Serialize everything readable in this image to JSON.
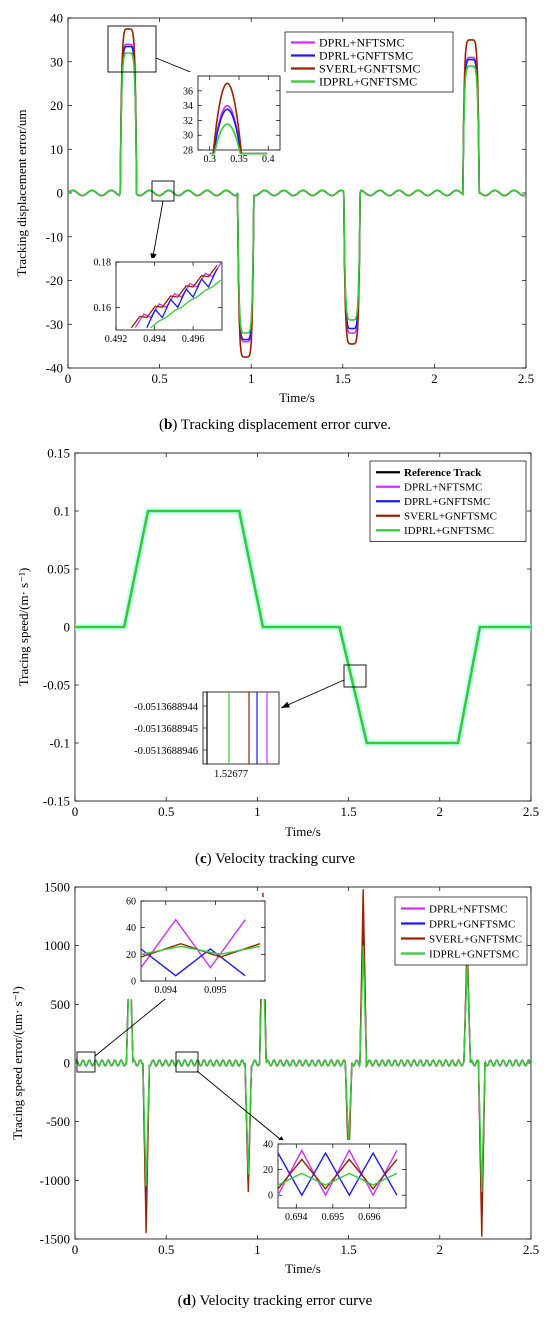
{
  "colors": {
    "DPRL+NFTSMC": "#cc33ff",
    "DPRL+GNFTSMC": "#1a1aff",
    "SVERL+GNFTSMC": "#992200",
    "IDPRL+GNFTSMC": "#33cc33",
    "Reference Track": "#000000"
  },
  "captions": [
    {
      "letter": "b",
      "open": "(",
      "close": ")",
      "text": " Tracking displacement error curve."
    },
    {
      "letter": "c",
      "open": "(",
      "close": ")",
      "text": " Velocity tracking curve"
    },
    {
      "letter": "d",
      "open": "(",
      "close": ")",
      "text": " Velocity tracking error curve"
    }
  ],
  "chart_data": [
    {
      "type": "line",
      "panel": "b",
      "xlabel": "Time/s",
      "ylabel": "Tracking displacement error/um",
      "xlim": [
        0,
        2.5
      ],
      "ylim": [
        -40,
        40
      ],
      "xticks": [
        "0",
        "0.5",
        "1",
        "1.5",
        "2",
        "2.5"
      ],
      "yticks": [
        "-40",
        "-30",
        "-20",
        "-10",
        "0",
        "10",
        "20",
        "30",
        "40"
      ],
      "legend_position": "top-right",
      "series": [
        {
          "name": "DPRL+NFTSMC",
          "peaks": [
            34,
            -34,
            -32,
            31
          ]
        },
        {
          "name": "DPRL+GNFTSMC",
          "peaks": [
            33.5,
            -33.5,
            -31,
            30.5
          ]
        },
        {
          "name": "SVERL+GNFTSMC",
          "peaks": [
            37.5,
            -37.5,
            -34.5,
            35
          ]
        },
        {
          "name": "IDPRL+GNFTSMC",
          "peaks": [
            32,
            -32,
            -29,
            29
          ]
        }
      ],
      "peak_times": [
        0.33,
        0.97,
        1.55,
        2.2
      ],
      "insets": [
        {
          "xlim": [
            0.28,
            0.42
          ],
          "ylim": [
            28,
            38
          ],
          "xticks": [
            "0.3",
            "0.35",
            "0.4"
          ],
          "yticks": [
            "28",
            "30",
            "32",
            "34",
            "36"
          ],
          "series_peaks": {
            "DPRL+NFTSMC": 34,
            "DPRL+GNFTSMC": 33.5,
            "SVERL+GNFTSMC": 37,
            "IDPRL+GNFTSMC": 31.5
          }
        },
        {
          "xlim": [
            0.492,
            0.4975
          ],
          "ylim": [
            0.15,
            0.18
          ],
          "xticks": [
            "0.492",
            "0.494",
            "0.496"
          ],
          "yticks": [
            "0.16",
            "0.18"
          ]
        }
      ]
    },
    {
      "type": "line",
      "panel": "c",
      "xlabel": "Time/s",
      "ylabel": "Tracing speed/(m· s⁻¹)",
      "xlim": [
        0,
        2.5
      ],
      "ylim": [
        -0.15,
        0.15
      ],
      "xticks": [
        "0",
        "0.5",
        "1",
        "1.5",
        "2",
        "2.5"
      ],
      "yticks": [
        "-0.15",
        "-0.1",
        "-0.05",
        "0",
        "0.05",
        "0.1",
        "0.15"
      ],
      "legend_position": "top-right",
      "series_names": [
        "Reference Track",
        "DPRL+NFTSMC",
        "DPRL+GNFTSMC",
        "SVERL+GNFTSMC",
        "IDPRL+GNFTSMC"
      ],
      "x": [
        0,
        0.27,
        0.4,
        0.9,
        1.03,
        1.45,
        1.6,
        2.1,
        2.22,
        2.5
      ],
      "y": [
        0,
        0,
        0.1,
        0.1,
        0,
        0,
        -0.1,
        -0.1,
        0,
        0
      ],
      "inset": {
        "yticks": [
          "-0.0513688944",
          "-0.0513688945",
          "-0.0513688946"
        ],
        "xticks": [
          "1.52677"
        ]
      }
    },
    {
      "type": "line",
      "panel": "d",
      "xlabel": "Time/s",
      "ylabel": "Tracing speed error/(um· s⁻¹)",
      "xlim": [
        0,
        2.5
      ],
      "ylim": [
        -1500,
        1500
      ],
      "xticks": [
        "0",
        "0.5",
        "1",
        "1.5",
        "2",
        "2.5"
      ],
      "yticks": [
        "-1500",
        "-1000",
        "-500",
        "0",
        "500",
        "1000",
        "1500"
      ],
      "legend_position": "top-right",
      "series": [
        {
          "name": "DPRL+NFTSMC",
          "spikes": [
            1050,
            -1200,
            -1050,
            1400,
            -800,
            1300,
            950,
            -1300
          ]
        },
        {
          "name": "DPRL+GNFTSMC",
          "spikes": [
            1000,
            -1250,
            -1000,
            1380,
            -750,
            1280,
            900,
            -1320
          ]
        },
        {
          "name": "SVERL+GNFTSMC",
          "spikes": [
            1100,
            -1450,
            -1100,
            1450,
            -900,
            1480,
            1050,
            -1480
          ]
        },
        {
          "name": "IDPRL+GNFTSMC",
          "spikes": [
            980,
            -1050,
            -950,
            1000,
            -700,
            1000,
            880,
            -1100
          ]
        }
      ],
      "spike_times": [
        0.3,
        0.39,
        0.95,
        1.03,
        1.5,
        1.58,
        2.15,
        2.23
      ],
      "insets": [
        {
          "xlim": [
            0.0935,
            0.096
          ],
          "ylim": [
            0,
            60
          ],
          "xticks": [
            "0.094",
            "0.095"
          ],
          "yticks": [
            "0",
            "20",
            "40",
            "60"
          ]
        },
        {
          "xlim": [
            0.6935,
            0.697
          ],
          "ylim": [
            -10,
            40
          ],
          "xticks": [
            "0.694",
            "0.695",
            "0.696"
          ],
          "yticks": [
            "0",
            "20",
            "40"
          ]
        }
      ]
    }
  ]
}
